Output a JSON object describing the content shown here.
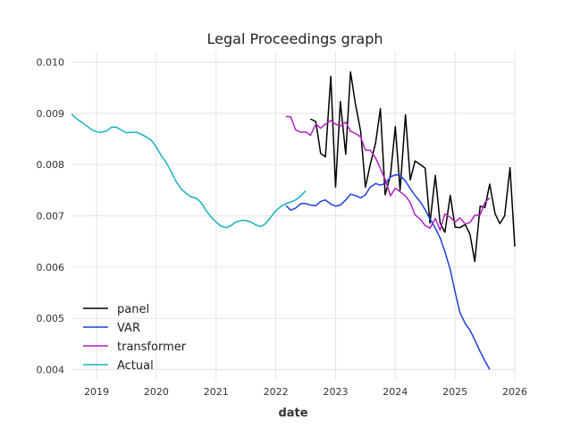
{
  "chart_data": {
    "type": "line",
    "title": "Legal Proceedings graph",
    "xlabel": "date",
    "ylabel": "",
    "xlim": [
      2018.58,
      2026.0
    ],
    "ylim": [
      0.0038,
      0.0102
    ],
    "x_ticks": [
      2019,
      2020,
      2021,
      2022,
      2023,
      2024,
      2025,
      2026
    ],
    "x_tick_labels": [
      "2019",
      "2020",
      "2021",
      "2022",
      "2023",
      "2024",
      "2025",
      "2026"
    ],
    "y_ticks": [
      0.004,
      0.005,
      0.006,
      0.007,
      0.008,
      0.009,
      0.01
    ],
    "y_tick_labels": [
      "0.004",
      "0.005",
      "0.006",
      "0.007",
      "0.008",
      "0.009",
      "0.010"
    ],
    "grid": true,
    "legend_position": "lower-left",
    "series": [
      {
        "name": "panel",
        "color": "#000000",
        "points": [
          [
            2022.58,
            0.00889
          ],
          [
            2022.67,
            0.00884
          ],
          [
            2022.75,
            0.00822
          ],
          [
            2022.83,
            0.00815
          ],
          [
            2022.92,
            0.00972
          ],
          [
            2023.0,
            0.00756
          ],
          [
            2023.08,
            0.00923
          ],
          [
            2023.17,
            0.0082
          ],
          [
            2023.25,
            0.00981
          ],
          [
            2023.33,
            0.0092
          ],
          [
            2023.42,
            0.00865
          ],
          [
            2023.5,
            0.00756
          ],
          [
            2023.58,
            0.008
          ],
          [
            2023.67,
            0.00842
          ],
          [
            2023.75,
            0.00909
          ],
          [
            2023.83,
            0.00741
          ],
          [
            2023.92,
            0.0078
          ],
          [
            2024.0,
            0.00874
          ],
          [
            2024.08,
            0.0075
          ],
          [
            2024.17,
            0.00897
          ],
          [
            2024.25,
            0.0077
          ],
          [
            2024.33,
            0.00807
          ],
          [
            2024.42,
            0.008
          ],
          [
            2024.5,
            0.00793
          ],
          [
            2024.58,
            0.00686
          ],
          [
            2024.67,
            0.00779
          ],
          [
            2024.75,
            0.00686
          ],
          [
            2024.83,
            0.00668
          ],
          [
            2024.92,
            0.0074
          ],
          [
            2025.0,
            0.00678
          ],
          [
            2025.08,
            0.00677
          ],
          [
            2025.17,
            0.00683
          ],
          [
            2025.25,
            0.00664
          ],
          [
            2025.33,
            0.00611
          ],
          [
            2025.42,
            0.00719
          ],
          [
            2025.5,
            0.00716
          ],
          [
            2025.58,
            0.00762
          ],
          [
            2025.67,
            0.00704
          ],
          [
            2025.75,
            0.00685
          ],
          [
            2025.83,
            0.007
          ],
          [
            2025.92,
            0.00794
          ],
          [
            2026.0,
            0.0064
          ]
        ]
      },
      {
        "name": "VAR",
        "color": "#1f3fe0",
        "points": [
          [
            2022.17,
            0.0072
          ],
          [
            2022.25,
            0.00711
          ],
          [
            2022.33,
            0.00715
          ],
          [
            2022.42,
            0.00724
          ],
          [
            2022.5,
            0.00724
          ],
          [
            2022.58,
            0.00721
          ],
          [
            2022.67,
            0.0072
          ],
          [
            2022.75,
            0.00728
          ],
          [
            2022.83,
            0.00731
          ],
          [
            2022.92,
            0.00723
          ],
          [
            2023.0,
            0.00719
          ],
          [
            2023.08,
            0.00721
          ],
          [
            2023.17,
            0.00731
          ],
          [
            2023.25,
            0.00742
          ],
          [
            2023.33,
            0.0074
          ],
          [
            2023.42,
            0.00735
          ],
          [
            2023.5,
            0.00741
          ],
          [
            2023.58,
            0.00756
          ],
          [
            2023.67,
            0.00763
          ],
          [
            2023.75,
            0.0076
          ],
          [
            2023.83,
            0.00763
          ],
          [
            2023.92,
            0.00776
          ],
          [
            2024.0,
            0.0078
          ],
          [
            2024.08,
            0.00779
          ],
          [
            2024.17,
            0.00768
          ],
          [
            2024.25,
            0.00753
          ],
          [
            2024.33,
            0.0074
          ],
          [
            2024.42,
            0.00727
          ],
          [
            2024.5,
            0.00712
          ],
          [
            2024.58,
            0.00694
          ],
          [
            2024.67,
            0.00676
          ],
          [
            2024.75,
            0.00657
          ],
          [
            2024.83,
            0.0063
          ],
          [
            2024.92,
            0.00595
          ],
          [
            2025.0,
            0.00552
          ],
          [
            2025.08,
            0.00512
          ],
          [
            2025.17,
            0.0049
          ],
          [
            2025.25,
            0.00477
          ],
          [
            2025.33,
            0.00458
          ],
          [
            2025.42,
            0.00435
          ],
          [
            2025.5,
            0.00417
          ],
          [
            2025.58,
            0.004
          ]
        ]
      },
      {
        "name": "transformer",
        "color": "#b020c0",
        "points": [
          [
            2022.17,
            0.00894
          ],
          [
            2022.25,
            0.00893
          ],
          [
            2022.33,
            0.00868
          ],
          [
            2022.42,
            0.00863
          ],
          [
            2022.5,
            0.00864
          ],
          [
            2022.58,
            0.00857
          ],
          [
            2022.67,
            0.00879
          ],
          [
            2022.75,
            0.00871
          ],
          [
            2022.83,
            0.00879
          ],
          [
            2022.92,
            0.00886
          ],
          [
            2023.0,
            0.00879
          ],
          [
            2023.08,
            0.00875
          ],
          [
            2023.17,
            0.00883
          ],
          [
            2023.25,
            0.00865
          ],
          [
            2023.33,
            0.00861
          ],
          [
            2023.42,
            0.00854
          ],
          [
            2023.5,
            0.00828
          ],
          [
            2023.58,
            0.00828
          ],
          [
            2023.67,
            0.00813
          ],
          [
            2023.75,
            0.00792
          ],
          [
            2023.83,
            0.00771
          ],
          [
            2023.92,
            0.00739
          ],
          [
            2024.0,
            0.00754
          ],
          [
            2024.08,
            0.00747
          ],
          [
            2024.17,
            0.00739
          ],
          [
            2024.25,
            0.00726
          ],
          [
            2024.33,
            0.00702
          ],
          [
            2024.42,
            0.00693
          ],
          [
            2024.5,
            0.00681
          ],
          [
            2024.58,
            0.00676
          ],
          [
            2024.67,
            0.00695
          ],
          [
            2024.75,
            0.00672
          ],
          [
            2024.83,
            0.00704
          ],
          [
            2024.92,
            0.00697
          ],
          [
            2025.0,
            0.00688
          ],
          [
            2025.08,
            0.00696
          ],
          [
            2025.17,
            0.00684
          ],
          [
            2025.25,
            0.00687
          ],
          [
            2025.33,
            0.00701
          ],
          [
            2025.42,
            0.00702
          ],
          [
            2025.5,
            0.00726
          ],
          [
            2025.58,
            0.00735
          ]
        ]
      },
      {
        "name": "Actual",
        "color": "#17b0c0",
        "points": [
          [
            2018.58,
            0.00899
          ],
          [
            2018.67,
            0.00889
          ],
          [
            2018.75,
            0.00883
          ],
          [
            2018.83,
            0.00876
          ],
          [
            2018.92,
            0.00868
          ],
          [
            2019.0,
            0.00864
          ],
          [
            2019.08,
            0.00863
          ],
          [
            2019.17,
            0.00866
          ],
          [
            2019.25,
            0.00873
          ],
          [
            2019.33,
            0.00873
          ],
          [
            2019.42,
            0.00867
          ],
          [
            2019.5,
            0.00862
          ],
          [
            2019.58,
            0.00863
          ],
          [
            2019.67,
            0.00863
          ],
          [
            2019.75,
            0.00859
          ],
          [
            2019.83,
            0.00854
          ],
          [
            2019.92,
            0.00847
          ],
          [
            2020.0,
            0.00834
          ],
          [
            2020.08,
            0.00818
          ],
          [
            2020.17,
            0.00803
          ],
          [
            2020.25,
            0.00786
          ],
          [
            2020.33,
            0.00767
          ],
          [
            2020.42,
            0.00752
          ],
          [
            2020.5,
            0.00744
          ],
          [
            2020.58,
            0.00737
          ],
          [
            2020.67,
            0.00734
          ],
          [
            2020.75,
            0.00726
          ],
          [
            2020.83,
            0.00711
          ],
          [
            2020.92,
            0.00697
          ],
          [
            2021.0,
            0.00688
          ],
          [
            2021.08,
            0.0068
          ],
          [
            2021.17,
            0.00677
          ],
          [
            2021.25,
            0.00681
          ],
          [
            2021.33,
            0.00688
          ],
          [
            2021.42,
            0.00691
          ],
          [
            2021.5,
            0.00691
          ],
          [
            2021.58,
            0.00688
          ],
          [
            2021.67,
            0.00682
          ],
          [
            2021.75,
            0.00679
          ],
          [
            2021.83,
            0.00685
          ],
          [
            2021.92,
            0.00698
          ],
          [
            2022.0,
            0.0071
          ],
          [
            2022.08,
            0.00718
          ],
          [
            2022.17,
            0.00724
          ],
          [
            2022.25,
            0.00727
          ],
          [
            2022.33,
            0.00731
          ],
          [
            2022.42,
            0.00739
          ],
          [
            2022.5,
            0.00749
          ]
        ]
      }
    ]
  }
}
